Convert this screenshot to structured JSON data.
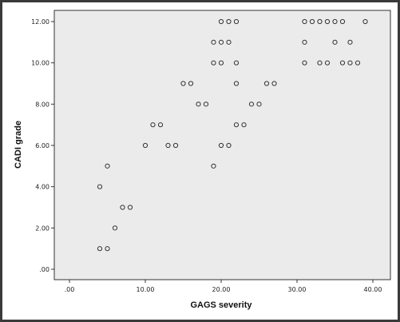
{
  "chart_data": {
    "type": "scatter",
    "title": "",
    "xlabel": "GAGS severity",
    "ylabel": "CADI grade",
    "xlim": [
      0,
      40
    ],
    "ylim": [
      0,
      12
    ],
    "grid": false,
    "x_ticks": [
      ".00",
      "10.00",
      "20.00",
      "30.00",
      "40.00"
    ],
    "y_ticks": [
      ".00",
      "2.00",
      "4.00",
      "6.00",
      "8.00",
      "10.00",
      "12.00"
    ],
    "plot_background": "#ebebeb",
    "marker_color": "#333333",
    "points": [
      {
        "x": 4,
        "y": 1
      },
      {
        "x": 5,
        "y": 1
      },
      {
        "x": 6,
        "y": 2
      },
      {
        "x": 7,
        "y": 3
      },
      {
        "x": 8,
        "y": 3
      },
      {
        "x": 4,
        "y": 4
      },
      {
        "x": 5,
        "y": 5
      },
      {
        "x": 10,
        "y": 6
      },
      {
        "x": 13,
        "y": 6
      },
      {
        "x": 14,
        "y": 6
      },
      {
        "x": 11,
        "y": 7
      },
      {
        "x": 12,
        "y": 7
      },
      {
        "x": 15,
        "y": 9
      },
      {
        "x": 16,
        "y": 9
      },
      {
        "x": 17,
        "y": 8
      },
      {
        "x": 18,
        "y": 8
      },
      {
        "x": 19,
        "y": 5
      },
      {
        "x": 20,
        "y": 6
      },
      {
        "x": 21,
        "y": 6
      },
      {
        "x": 22,
        "y": 7
      },
      {
        "x": 23,
        "y": 7
      },
      {
        "x": 24,
        "y": 8
      },
      {
        "x": 25,
        "y": 8
      },
      {
        "x": 26,
        "y": 9
      },
      {
        "x": 27,
        "y": 9
      },
      {
        "x": 22,
        "y": 9
      },
      {
        "x": 19,
        "y": 10
      },
      {
        "x": 20,
        "y": 10
      },
      {
        "x": 22,
        "y": 10
      },
      {
        "x": 19,
        "y": 11
      },
      {
        "x": 20,
        "y": 11
      },
      {
        "x": 21,
        "y": 11
      },
      {
        "x": 20,
        "y": 12
      },
      {
        "x": 21,
        "y": 12
      },
      {
        "x": 22,
        "y": 12
      },
      {
        "x": 31,
        "y": 10
      },
      {
        "x": 33,
        "y": 10
      },
      {
        "x": 34,
        "y": 10
      },
      {
        "x": 36,
        "y": 10
      },
      {
        "x": 37,
        "y": 10
      },
      {
        "x": 38,
        "y": 10
      },
      {
        "x": 31,
        "y": 11
      },
      {
        "x": 35,
        "y": 11
      },
      {
        "x": 37,
        "y": 11
      },
      {
        "x": 31,
        "y": 12
      },
      {
        "x": 32,
        "y": 12
      },
      {
        "x": 33,
        "y": 12
      },
      {
        "x": 34,
        "y": 12
      },
      {
        "x": 35,
        "y": 12
      },
      {
        "x": 36,
        "y": 12
      },
      {
        "x": 39,
        "y": 12
      }
    ]
  }
}
